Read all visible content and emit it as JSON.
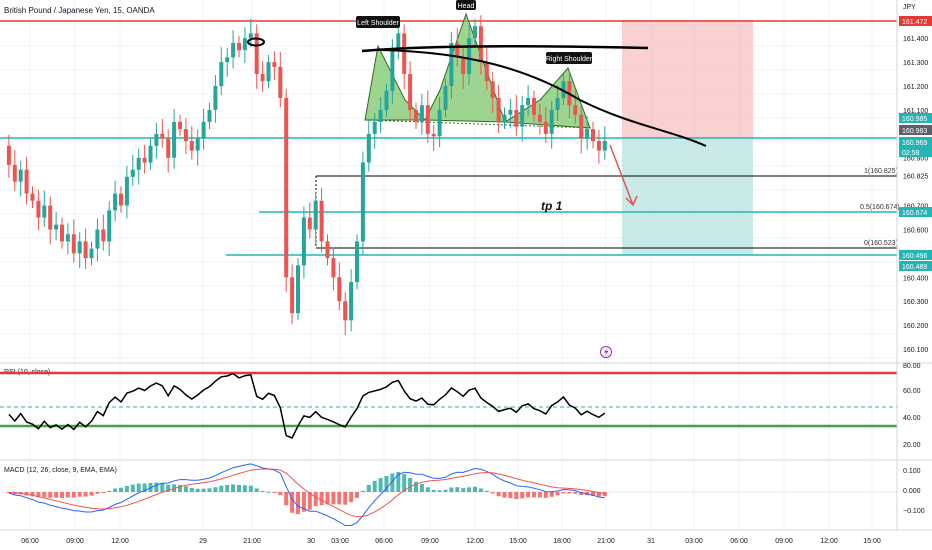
{
  "header": {
    "symbol_title": "British Pound / Japanese Yen, 15, OANDA",
    "currency": "JPY"
  },
  "colors": {
    "up": "#26a69a",
    "down": "#ef5350",
    "teal_line": "#22b5b5",
    "rsi_red": "#e53935",
    "rsi_green": "#43a047",
    "macd_line": "#2962ff",
    "signal_line": "#ef5350"
  },
  "price_axis": {
    "ticks": [
      "161.472",
      "161.400",
      "161.300",
      "161.200",
      "161.100",
      "160.985",
      "160.983",
      "160.969",
      "160.900",
      "160.825",
      "160.700",
      "160.674",
      "160.600",
      "160.496",
      "160.489",
      "160.400",
      "160.300",
      "160.200",
      "160.100"
    ],
    "badges": [
      {
        "text": "161.472",
        "kind": "red"
      },
      {
        "text": "160.985",
        "kind": "teal"
      },
      {
        "text": "160.983",
        "kind": "gray"
      },
      {
        "text": "160.969",
        "kind": "teal"
      },
      {
        "text": "02:58",
        "kind": "teal"
      },
      {
        "text": "160.674",
        "kind": "teal"
      },
      {
        "text": "160.496",
        "kind": "teal"
      },
      {
        "text": "160.489",
        "kind": "teal"
      }
    ]
  },
  "annotations": {
    "left_shoulder": "Left Shoulder",
    "head": "Head",
    "right_shoulder": "Right Shoulder",
    "tp_label": "tp 1",
    "fib_1": "1(160.825)",
    "fib_05": "0.5(160.674)",
    "fib_0": "0(160.523)",
    "flash_icon": "lightning-icon"
  },
  "rsi": {
    "title": "RSI (10, close)",
    "ticks": [
      "80.00",
      "60.00",
      "40.00",
      "20.00"
    ],
    "upper": 80,
    "lower": 30,
    "mid": 50
  },
  "macd": {
    "title": "MACD (12, 26, close, 9, EMA, EMA)",
    "ticks": [
      "0.100",
      "0.000",
      "−0.100"
    ]
  },
  "time_axis": {
    "labels": [
      "06:00",
      "09:00",
      "12:00",
      "29",
      "21:00",
      "30",
      "03:00",
      "06:00",
      "09:00",
      "12:00",
      "15:00",
      "18:00",
      "21:00",
      "31",
      "03:00",
      "06:00",
      "09:00",
      "12:00",
      "15:00"
    ]
  },
  "chart_data": {
    "type": "candlestick",
    "title": "British Pound / Japanese Yen, 15, OANDA",
    "ylabel": "JPY",
    "ylim": [
      160.05,
      161.5
    ],
    "levels": {
      "resistance": 161.472,
      "fib_1": 160.825,
      "fib_05": 160.674,
      "fib_0": 160.523,
      "current": 160.969
    },
    "close_series": [
      160.95,
      160.87,
      160.8,
      160.85,
      160.75,
      160.72,
      160.65,
      160.7,
      160.6,
      160.62,
      160.55,
      160.58,
      160.5,
      160.55,
      160.48,
      160.52,
      160.6,
      160.55,
      160.68,
      160.75,
      160.7,
      160.82,
      160.85,
      160.9,
      160.88,
      160.95,
      161.0,
      160.98,
      160.9,
      161.05,
      161.02,
      160.97,
      160.93,
      160.98,
      161.05,
      161.1,
      161.2,
      161.3,
      161.32,
      161.38,
      161.35,
      161.4,
      161.42,
      161.25,
      161.22,
      161.3,
      161.28,
      161.15,
      160.4,
      160.25,
      160.45,
      160.65,
      160.6,
      160.72,
      160.55,
      160.48,
      160.4,
      160.3,
      160.22,
      160.38,
      160.55,
      160.88,
      161.0,
      161.05,
      161.1,
      161.18,
      161.35,
      161.42,
      161.25,
      161.1,
      161.05,
      161.12,
      161.0,
      160.99,
      161.1,
      161.2,
      161.38,
      161.32,
      161.25,
      161.4,
      161.45,
      161.3,
      161.22,
      161.15,
      161.05,
      161.08,
      161.1,
      161.03,
      161.12,
      161.15,
      161.08,
      161.05,
      161.0,
      161.1,
      161.15,
      161.22,
      161.12,
      161.08,
      160.98,
      161.02,
      160.97,
      160.93,
      160.97
    ]
  }
}
